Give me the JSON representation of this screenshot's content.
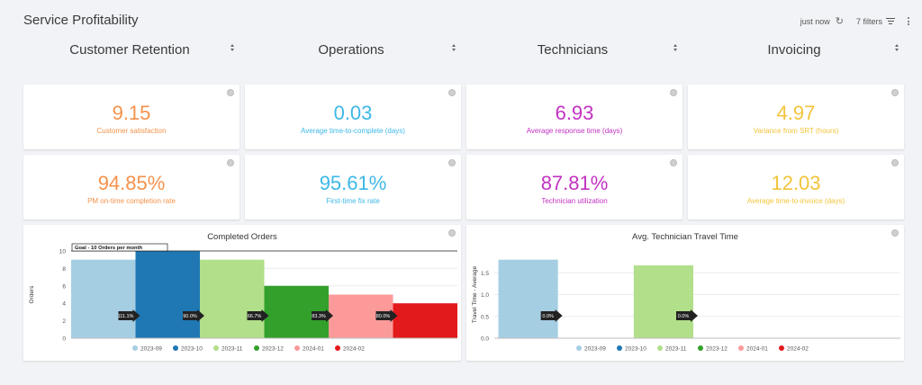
{
  "header": {
    "title": "Service Profitability",
    "last_updated": "just now",
    "filters_label": "7 filters"
  },
  "sections": [
    {
      "label": "Customer Retention"
    },
    {
      "label": "Operations"
    },
    {
      "label": "Technicians"
    },
    {
      "label": "Invoicing"
    }
  ],
  "kpis": [
    {
      "value": "9.15",
      "label": "Customer satisfaction",
      "color": "#f4924b"
    },
    {
      "value": "0.03",
      "label": "Average time-to-complete (days)",
      "color": "#3db8e6"
    },
    {
      "value": "6.93",
      "label": "Average response time (days)",
      "color": "#c232c2"
    },
    {
      "value": "4.97",
      "label": "Variance from SRT (hours)",
      "color": "#f3c43a"
    },
    {
      "value": "94.85%",
      "label": "PM on-time completion rate",
      "color": "#f4924b"
    },
    {
      "value": "95.61%",
      "label": "First-time fix rate",
      "color": "#3db8e6"
    },
    {
      "value": "87.81%",
      "label": "Technician utilization",
      "color": "#c232c2"
    },
    {
      "value": "12.03",
      "label": "Average time-to-invoice (days)",
      "color": "#f3c43a"
    }
  ],
  "chart_data": [
    {
      "type": "bar",
      "title": "Completed Orders",
      "ylabel": "Orders",
      "xlabel": "",
      "ylim": [
        0,
        10
      ],
      "yticks": [
        "0",
        "2",
        "4",
        "6",
        "8",
        "10"
      ],
      "categories": [
        "2023-09",
        "2023-10",
        "2023-11",
        "2023-12",
        "2024-01",
        "2024-02"
      ],
      "values": [
        9,
        10,
        9,
        6,
        5,
        4
      ],
      "colors": [
        "#a6cee3",
        "#1f78b4",
        "#b2df8a",
        "#33a02c",
        "#fb9a99",
        "#e31a1c"
      ],
      "goal": {
        "value": 10,
        "label": "Goal - 10 Orders per month"
      },
      "annotations": [
        "111.1%",
        "90.0%",
        "66.7%",
        "83.3%",
        "80.0%"
      ],
      "legend": "bottom",
      "grid": true
    },
    {
      "type": "bar",
      "title": "Avg. Technician Travel Time",
      "ylabel": "Travel Time - Average",
      "xlabel": "",
      "ylim": [
        0,
        2
      ],
      "yticks": [
        "0.0",
        "0.5",
        "1.0",
        "1.5"
      ],
      "categories": [
        "2023-09",
        "2023-10",
        "2023-11",
        "2023-12",
        "2024-01",
        "2024-02"
      ],
      "values": [
        1.8,
        null,
        1.67,
        null,
        null,
        null
      ],
      "colors": [
        "#a6cee3",
        "#1f78b4",
        "#b2df8a",
        "#33a02c",
        "#fb9a99",
        "#e31a1c"
      ],
      "annotations": [
        "0.0%",
        "0.0%"
      ],
      "legend": "bottom",
      "grid": true
    }
  ]
}
